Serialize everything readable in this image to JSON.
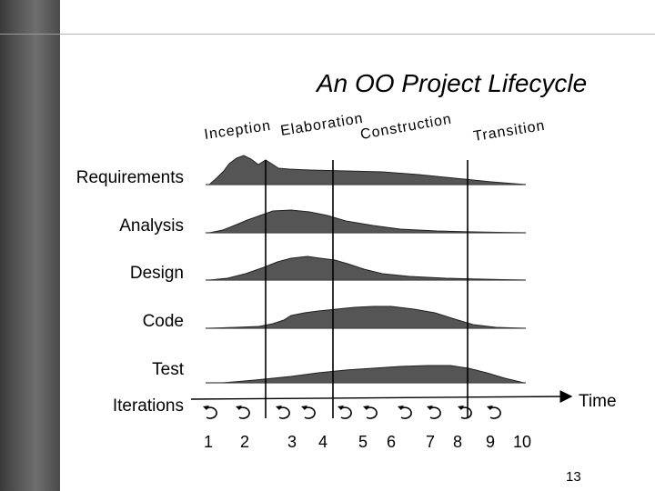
{
  "title": "An OO Project Lifecycle",
  "phases": [
    "Inception",
    "Elaboration",
    "Construction",
    "Transition"
  ],
  "workflows": [
    "Requirements",
    "Analysis",
    "Design",
    "Code",
    "Test"
  ],
  "iterations_label": "Iterations",
  "iterations": [
    "1",
    "2",
    "3",
    "4",
    "5",
    "6",
    "7",
    "8",
    "9",
    "10"
  ],
  "time_label": "Time",
  "page_number": "13",
  "colors": {
    "hump_fill": "#555555",
    "sidebar": "#505050",
    "iteration_icon": "cycle-arrow-icon"
  }
}
